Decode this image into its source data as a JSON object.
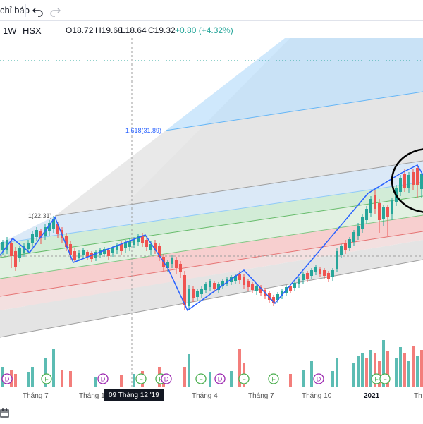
{
  "toolbar": {
    "indicators_label": "chỉ báo",
    "undo_icon": "undo-icon",
    "redo_icon": "redo-icon"
  },
  "legend": {
    "interval": "1W",
    "exchange": "HSX",
    "open": "O18.72",
    "high": "H19.68",
    "low": "L18.64",
    "close": "C19.32",
    "change": "+0.80 (+4.32%)"
  },
  "fib": {
    "level_1618": "1.618(31.89)",
    "level_1": "1(22.31)"
  },
  "xaxis": {
    "labels": [
      "Tháng 7",
      "Tháng 10",
      "Tháng 4",
      "Tháng 7",
      "Tháng 10",
      "2021",
      "Th"
    ],
    "cursor_date": "09 Tháng 12 '19"
  },
  "events": [
    "D",
    "F",
    "D",
    "F",
    "F",
    "D",
    "F",
    "D",
    "F",
    "F",
    "D",
    "F",
    "F"
  ],
  "colors": {
    "up": "#26a69a",
    "down": "#ef5350",
    "zigzag": "#2962ff",
    "accent": "#26a69a"
  }
}
